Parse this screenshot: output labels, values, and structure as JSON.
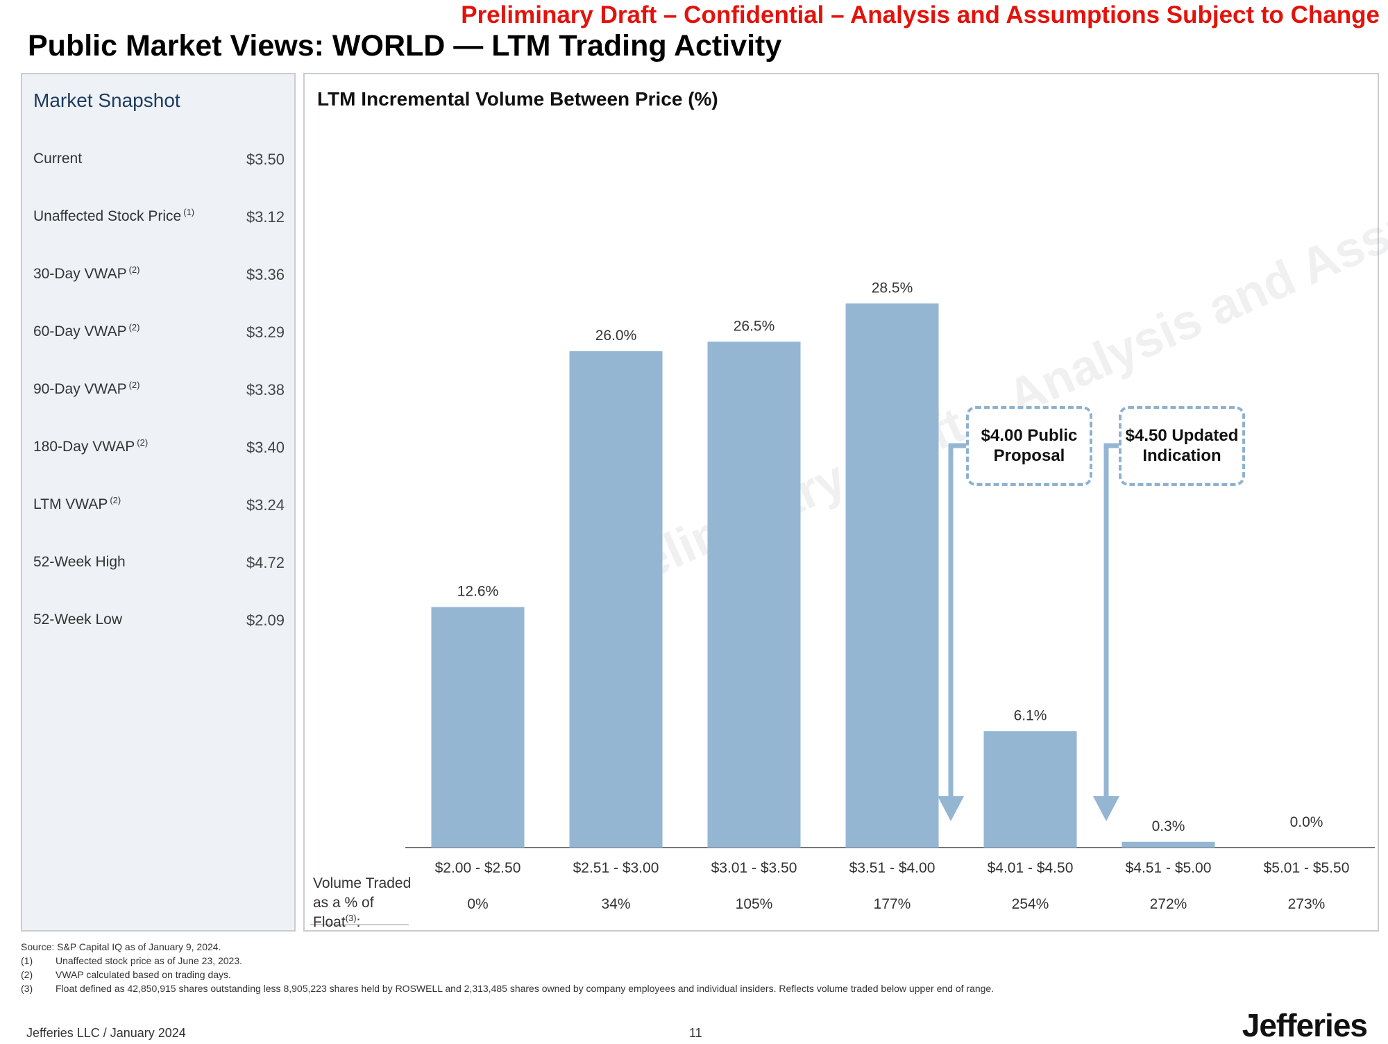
{
  "banner": "Preliminary Draft – Confidential – Analysis and Assumptions Subject to Change",
  "title": "Public Market Views: WORLD — LTM Trading Activity",
  "snapshot": {
    "title": "Market Snapshot",
    "rows": [
      {
        "label": "Current",
        "sup": "",
        "value": "$3.50"
      },
      {
        "label": "Unaffected Stock Price",
        "sup": "(1)",
        "value": "$3.12"
      },
      {
        "label": "30-Day VWAP",
        "sup": "(2)",
        "value": "$3.36"
      },
      {
        "label": "60-Day VWAP",
        "sup": "(2)",
        "value": "$3.29"
      },
      {
        "label": "90-Day VWAP",
        "sup": "(2)",
        "value": "$3.38"
      },
      {
        "label": "180-Day VWAP",
        "sup": "(2)",
        "value": "$3.40"
      },
      {
        "label": "LTM VWAP",
        "sup": "(2)",
        "value": "$3.24"
      },
      {
        "label": "52-Week High",
        "sup": "",
        "value": "$4.72"
      },
      {
        "label": "52-Week Low",
        "sup": "",
        "value": "$2.09"
      }
    ]
  },
  "chart_data": {
    "type": "bar",
    "title": "LTM Incremental Volume Between Price (%)",
    "categories": [
      "$2.00 - $2.50",
      "$2.51 - $3.00",
      "$3.01 - $3.50",
      "$3.51 - $4.00",
      "$4.01 - $4.50",
      "$4.51 - $5.00",
      "$5.01 - $5.50"
    ],
    "values": [
      12.6,
      26.0,
      26.5,
      28.5,
      6.1,
      0.3,
      0.0
    ],
    "value_labels": [
      "12.6%",
      "26.0%",
      "26.5%",
      "28.5%",
      "6.1%",
      "0.3%",
      "0.0%"
    ],
    "float_traded_labels": [
      "0%",
      "34%",
      "105%",
      "177%",
      "254%",
      "272%",
      "273%"
    ],
    "float_traded_header": "Volume Traded as a % of Float",
    "float_traded_sup": "(3)",
    "float_traded_suffix": ":",
    "ylim": [
      0,
      30
    ],
    "bar_color": "#94b6d3",
    "annotations": [
      {
        "text": "$4.00 Public Proposal"
      },
      {
        "text": "$4.50 Updated Indication"
      }
    ]
  },
  "watermark": "Preliminary Draft – Analysis and Assumptions Subject to Refinement/Change",
  "footnotes": {
    "source": "Source: S&P Capital IQ as of January 9, 2024.",
    "items": [
      {
        "num": "(1)",
        "text": "Unaffected stock price as of June 23, 2023."
      },
      {
        "num": "(2)",
        "text": "VWAP calculated based on trading days."
      },
      {
        "num": "(3)",
        "text": "Float defined as 42,850,915 shares outstanding less 8,905,223 shares held by ROSWELL and 2,313,485 shares owned by company employees and individual insiders. Reflects volume traded below upper end of range."
      }
    ]
  },
  "footer": {
    "left": "Jefferies LLC / January 2024",
    "page": "11",
    "logo": "Jefferies"
  }
}
